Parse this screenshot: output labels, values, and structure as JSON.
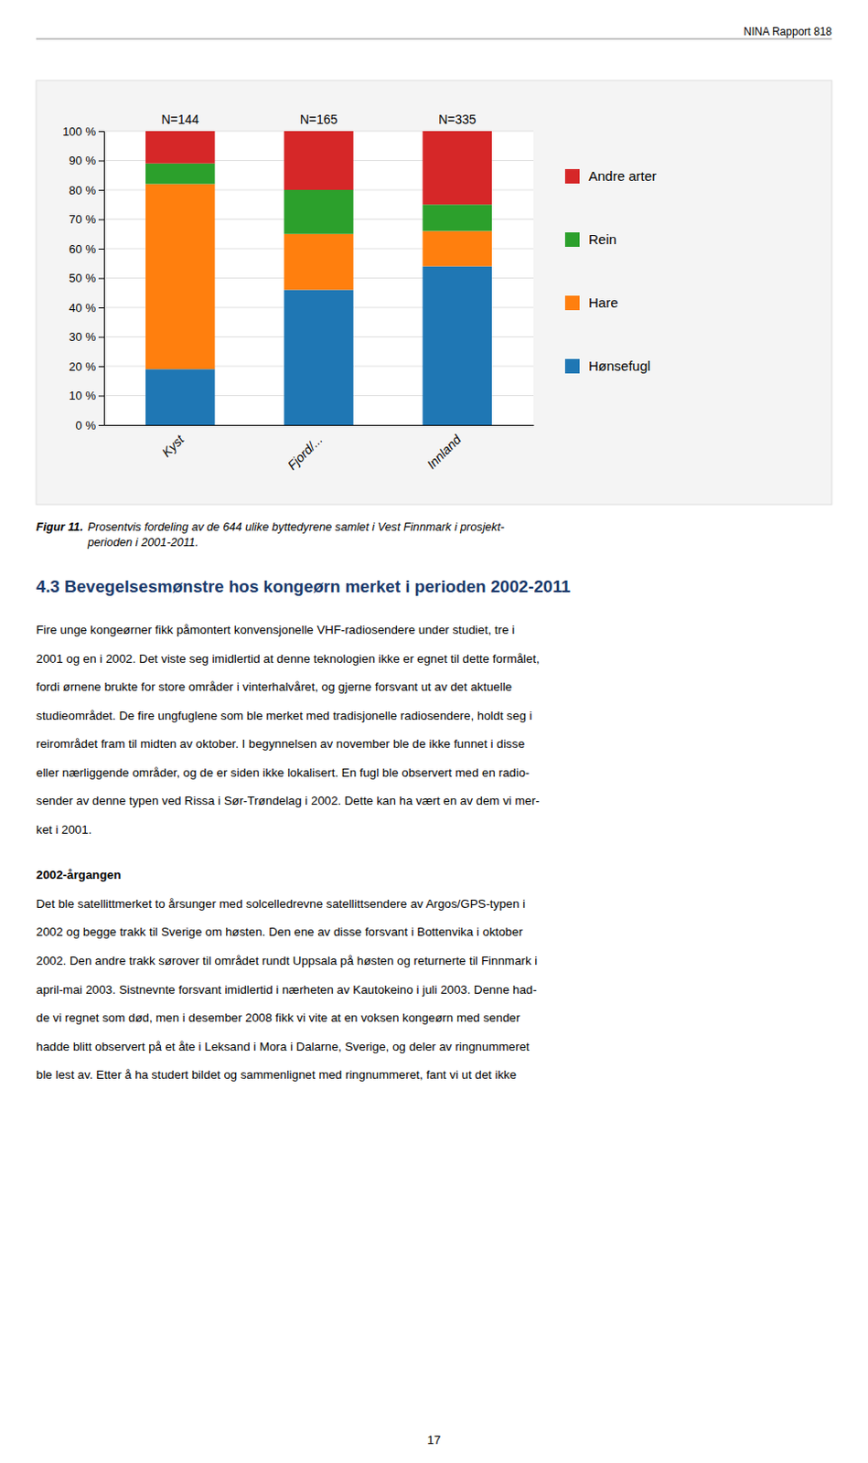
{
  "header": "NINA Rapport 818",
  "chart_data": {
    "type": "bar",
    "stacked": true,
    "grid": true,
    "legend": "right",
    "categories": [
      "Kyst",
      "Fjord/...",
      "Innland"
    ],
    "series": [
      {
        "name": "Hønsefugl",
        "values": [
          19,
          46,
          54
        ]
      },
      {
        "name": "Hare",
        "values": [
          63,
          19,
          12
        ]
      },
      {
        "name": "Rein",
        "values": [
          7,
          15,
          9
        ]
      },
      {
        "name": "Andre arter",
        "values": [
          11,
          20,
          25
        ]
      }
    ],
    "ylim": [
      0,
      100
    ],
    "yticks": [
      {
        "value": 0,
        "label": "0 %"
      },
      {
        "value": 10,
        "label": "10 %"
      },
      {
        "value": 20,
        "label": "20 %"
      },
      {
        "value": 30,
        "label": "30 %"
      },
      {
        "value": 40,
        "label": "40 %"
      },
      {
        "value": 50,
        "label": "50 %"
      },
      {
        "value": 60,
        "label": "60 %"
      },
      {
        "value": 70,
        "label": "70 %"
      },
      {
        "value": 80,
        "label": "80 %"
      },
      {
        "value": 90,
        "label": "90 %"
      },
      {
        "value": 100,
        "label": "100 %"
      }
    ],
    "annotations": [
      "N=144",
      "N=165",
      "N=335"
    ]
  },
  "caption_label": "Figur 11.",
  "caption_text": [
    "Prosentvis fordeling av de 644 ulike byttedyrene samlet i Vest Finnmark i prosjekt-",
    "perioden i 2001-2011."
  ],
  "section_heading": "4.3 Bevegelsesmønstre hos kongeørn merket i perioden 2002-2011",
  "body_paragraph1": [
    "Fire unge kongeørner fikk påmontert konvensjonelle VHF-radiosendere under studiet, tre i",
    "2001 og en i 2002. Det viste seg imidlertid at denne teknologien ikke er egnet til dette formålet,",
    "fordi ørnene brukte for store områder i vinterhalvåret, og gjerne forsvant ut av det aktuelle",
    "studieområdet. De fire ungfuglene som ble merket med tradisjonelle radiosendere, holdt seg i",
    "reirområdet fram til midten av oktober. I begynnelsen av november ble de ikke funnet i disse",
    "eller nærliggende områder, og de er siden ikke lokalisert. En fugl ble observert med en radio-",
    "sender av denne typen ved Rissa i Sør-Trøndelag i 2002. Dette kan ha vært en av dem vi mer-",
    "ket i 2001."
  ],
  "body_subheading": "2002-årgangen",
  "body_paragraph2": [
    "Det ble satellittmerket to årsunger med solcelledrevne satellittsendere av Argos/GPS-typen i",
    "2002 og begge trakk til Sverige om høsten. Den ene av disse forsvant i Bottenvika i oktober",
    "2002. Den andre trakk sørover til området rundt Uppsala på høsten og returnerte til Finnmark i",
    "april-mai 2003. Sistnevnte forsvant imidlertid i nærheten av Kautokeino i juli 2003. Denne had-",
    "de vi regnet som død, men i desember 2008 fikk vi vite at en voksen kongeørn med sender",
    "hadde blitt observert på et åte i Leksand i Mora i Dalarne, Sverige, og deler av ringnummeret",
    "ble lest av. Etter å ha studert bildet og sammenlignet med ringnummeret, fant vi ut det ikke"
  ],
  "page_number": "17"
}
